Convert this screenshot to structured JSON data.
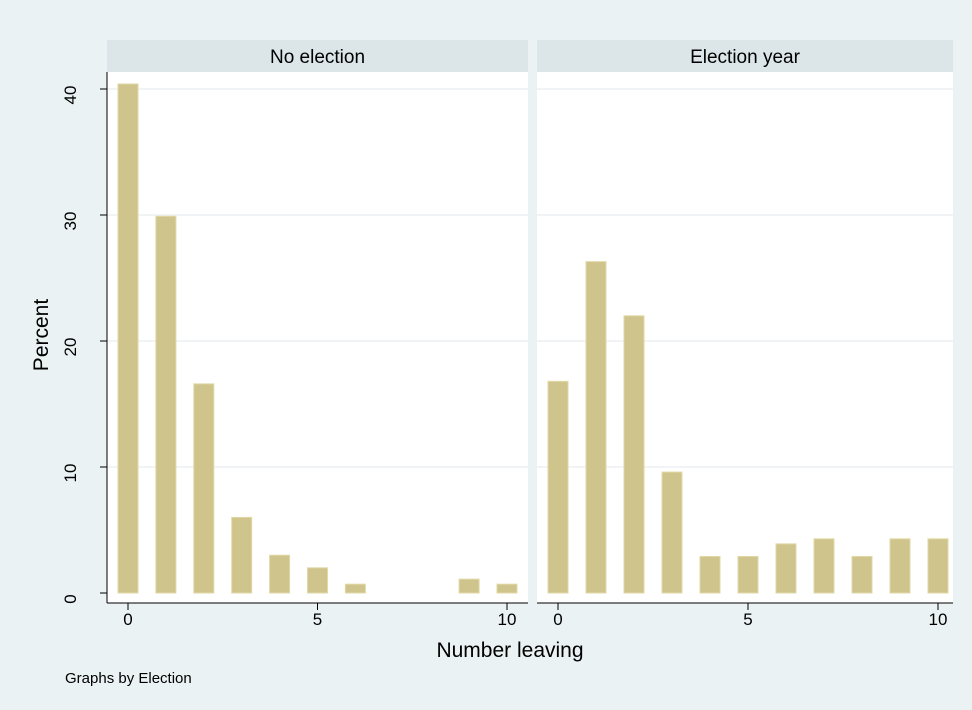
{
  "chart_data": {
    "type": "bar",
    "ylabel": "Percent",
    "xlabel": "Number leaving",
    "note": "Graphs by Election",
    "ylim": [
      0,
      40
    ],
    "yticks": [
      0,
      10,
      20,
      30,
      40
    ],
    "xlim": [
      0,
      10
    ],
    "xticks": [
      0,
      5,
      10
    ],
    "grid": true,
    "bar_color": "#cfc48c",
    "strip_color": "#dce6e9",
    "panels": [
      {
        "title": "No election",
        "x": [
          0,
          1,
          2,
          3,
          4,
          5,
          6,
          9,
          10
        ],
        "values": [
          40.4,
          29.9,
          16.6,
          6.0,
          3.0,
          2.0,
          0.7,
          1.1,
          0.7
        ]
      },
      {
        "title": "Election year",
        "x": [
          0,
          1,
          2,
          3,
          4,
          5,
          6,
          7,
          8,
          9,
          10
        ],
        "values": [
          16.8,
          26.3,
          22.0,
          9.6,
          2.9,
          2.9,
          3.9,
          4.3,
          2.9,
          4.3,
          4.3
        ]
      }
    ]
  }
}
